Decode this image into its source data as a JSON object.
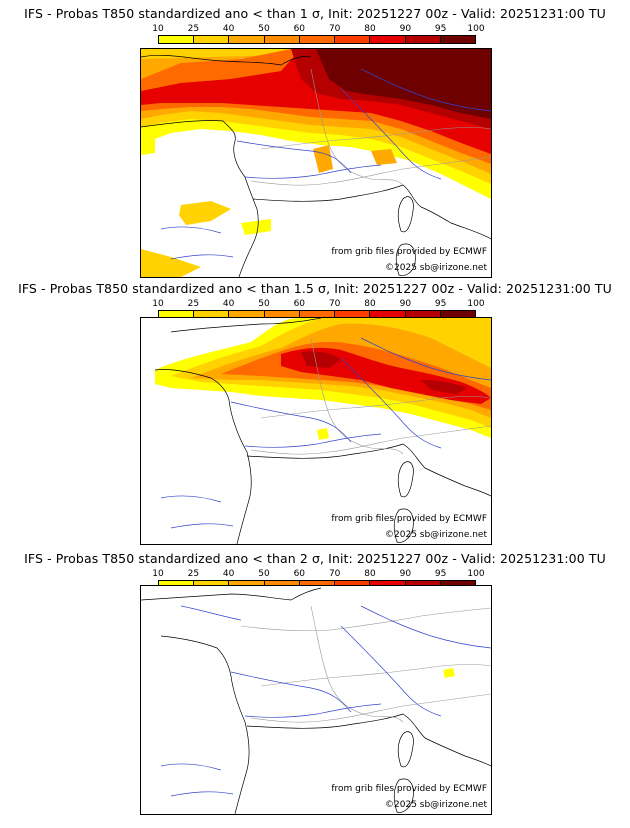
{
  "legend": {
    "ticks": [
      "10",
      "25",
      "40",
      "50",
      "60",
      "70",
      "80",
      "90",
      "95",
      "100"
    ],
    "colors": [
      "#ffff00",
      "#ffd200",
      "#ffa800",
      "#ff8c00",
      "#ff6a00",
      "#ff3c00",
      "#e60000",
      "#b40000",
      "#6e0000"
    ]
  },
  "panels": [
    {
      "title": "IFS - Probas T850  standardized ano < than 1 σ, Init: 20251227 00z - Valid: 20251231:00 TU"
    },
    {
      "title": "IFS - Probas T850  standardized ano < than 1.5 σ, Init: 20251227 00z - Valid: 20251231:00 TU"
    },
    {
      "title": "IFS - Probas T850  standardized ano < than 2 σ, Init: 20251227 00z - Valid: 20251231:00 TU"
    }
  ],
  "credits": {
    "source": "from grib files provided by ECMWF",
    "copyright": "©2025 sb@irizone.net"
  }
}
